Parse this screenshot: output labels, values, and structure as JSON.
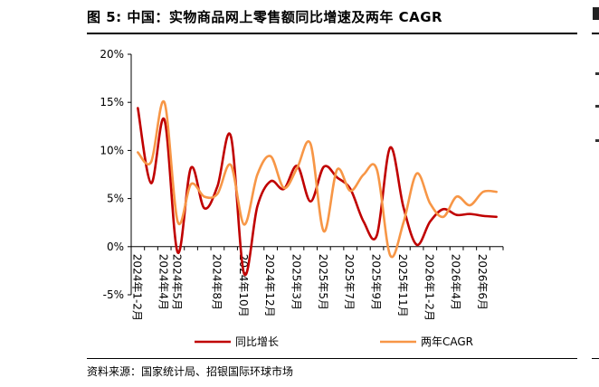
{
  "figure": {
    "title": "图 5: 中国：实物商品网上零售额同比增速及两年 CAGR",
    "source": "资料来源：国家统计局、招银国际环球市场"
  },
  "chart_data": {
    "type": "line",
    "title": "图 5: 中国：实物商品网上零售额同比增速及两年 CAGR",
    "xlabel": "",
    "ylabel": "",
    "ylim": [
      -5,
      20
    ],
    "y_ticks": [
      "-5%",
      "0%",
      "5%",
      "10%",
      "15%",
      "20%"
    ],
    "x_ticks": [
      "2024年1-2月",
      "2024年4月",
      "2024年5月",
      "2024年8月",
      "2024年10月",
      "2024年12月",
      "2025年3月",
      "2025年5月",
      "2025年7月",
      "2025年9月",
      "2025年11月",
      "2026年1-2月",
      "2026年4月",
      "2026年6月"
    ],
    "grid": false,
    "legend_position": "bottom",
    "x": [
      "2024年1-2月",
      "2024年3月",
      "2024年4月",
      "2024年5月",
      "2024年6月",
      "2024年7月",
      "2024年8月",
      "2024年9月",
      "2024年10月",
      "2024年11月",
      "2024年12月",
      "2025年1-2月",
      "2025年3月",
      "2025年4月",
      "2025年5月",
      "2025年6月",
      "2025年7月",
      "2025年8月",
      "2025年9月",
      "2025年10月",
      "2025年11月",
      "2025年12月",
      "2026年1-2月",
      "2026年3月",
      "2026年4月",
      "2026年5月",
      "2026年6月",
      "2026年7月"
    ],
    "series": [
      {
        "name": "同比增长",
        "color": "#C00000",
        "values": [
          14.4,
          6.6,
          13.2,
          -0.6,
          8.2,
          4.0,
          6.3,
          11.5,
          -2.8,
          4.2,
          6.8,
          6.0,
          8.4,
          4.7,
          8.3,
          7.2,
          6.0,
          2.6,
          1.2,
          10.3,
          4.1,
          0.2,
          2.6,
          3.9,
          3.3,
          3.4,
          3.2,
          3.1
        ]
      },
      {
        "name": "两年CAGR",
        "color": "#F79646",
        "values": [
          9.8,
          8.8,
          15.0,
          2.6,
          6.5,
          5.2,
          5.5,
          8.5,
          2.3,
          7.5,
          9.4,
          6.1,
          8.2,
          10.7,
          1.6,
          8.0,
          5.8,
          7.5,
          8.0,
          -0.9,
          2.5,
          7.6,
          4.5,
          3.1,
          5.2,
          4.3,
          5.7,
          5.7
        ]
      }
    ]
  }
}
